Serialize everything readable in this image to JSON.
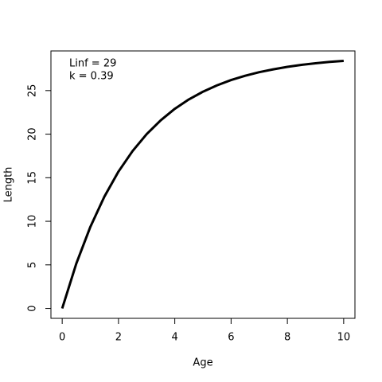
{
  "chart_data": {
    "type": "line",
    "x_label": "Age",
    "y_label": "Length",
    "annotations": [
      "Linf = 29",
      "k = 0.39"
    ],
    "x": [
      0,
      0.5,
      1,
      1.5,
      2,
      2.5,
      3,
      3.5,
      4,
      4.5,
      5,
      5.5,
      6,
      6.5,
      7,
      7.5,
      8,
      8.5,
      9,
      9.5,
      10
    ],
    "series": [
      {
        "color": "#000000",
        "values": [
          0,
          5.14,
          9.36,
          12.84,
          15.71,
          18.06,
          20.0,
          21.59,
          22.91,
          23.99,
          24.87,
          25.6,
          26.21,
          26.7,
          27.11,
          27.44,
          27.72,
          27.95,
          28.13,
          28.29,
          28.41
        ]
      }
    ],
    "xlim": [
      -0.4,
      10.4
    ],
    "ylim": [
      -1.136,
      29.55
    ],
    "xticks": [
      0,
      2,
      4,
      6,
      8,
      10
    ],
    "yticks": [
      0,
      5,
      10,
      15,
      20,
      25
    ]
  }
}
